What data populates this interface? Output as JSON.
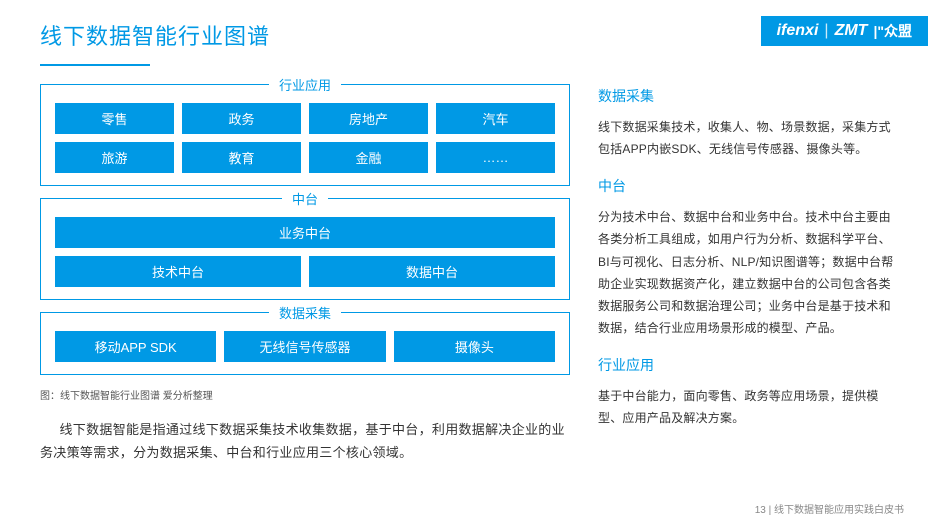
{
  "colors": {
    "brand": "#0099e5",
    "text": "#333333",
    "bg": "#ffffff"
  },
  "header": {
    "title": "线下数据智能行业图谱",
    "brand1": "ifenxi",
    "brand2": "ZMT",
    "brand3": "众盟"
  },
  "diagram": {
    "caption": "图：线下数据智能行业图谱 爱分析整理",
    "sections": [
      {
        "label": "行业应用",
        "rows": [
          {
            "cols": 4,
            "cells": [
              "零售",
              "政务",
              "房地产",
              "汽车"
            ]
          },
          {
            "cols": 4,
            "cells": [
              "旅游",
              "教育",
              "金融",
              "……"
            ]
          }
        ]
      },
      {
        "label": "中台",
        "rows": [
          {
            "cols": 1,
            "cells": [
              "业务中台"
            ]
          },
          {
            "cols": 2,
            "cells": [
              "技术中台",
              "数据中台"
            ]
          }
        ]
      },
      {
        "label": "数据采集",
        "rows": [
          {
            "cols": 3,
            "cells": [
              "移动APP SDK",
              "无线信号传感器",
              "摄像头"
            ]
          }
        ]
      }
    ]
  },
  "left_desc": "线下数据智能是指通过线下数据采集技术收集数据，基于中台，利用数据解决企业的业务决策等需求，分为数据采集、中台和行业应用三个核心领域。",
  "right": [
    {
      "heading": "数据采集",
      "body": "线下数据采集技术，收集人、物、场景数据，采集方式包括APP内嵌SDK、无线信号传感器、摄像头等。"
    },
    {
      "heading": "中台",
      "body": "分为技术中台、数据中台和业务中台。技术中台主要由各类分析工具组成，如用户行为分析、数据科学平台、BI与可视化、日志分析、NLP/知识图谱等；数据中台帮助企业实现数据资产化，建立数据中台的公司包含各类数据服务公司和数据治理公司；业务中台是基于技术和数据，结合行业应用场景形成的模型、产品。"
    },
    {
      "heading": "行业应用",
      "body": "基于中台能力，面向零售、政务等应用场景，提供模型、应用产品及解决方案。"
    }
  ],
  "footer": {
    "page": "13",
    "sep": " | ",
    "doc": "线下数据智能应用实践白皮书"
  }
}
